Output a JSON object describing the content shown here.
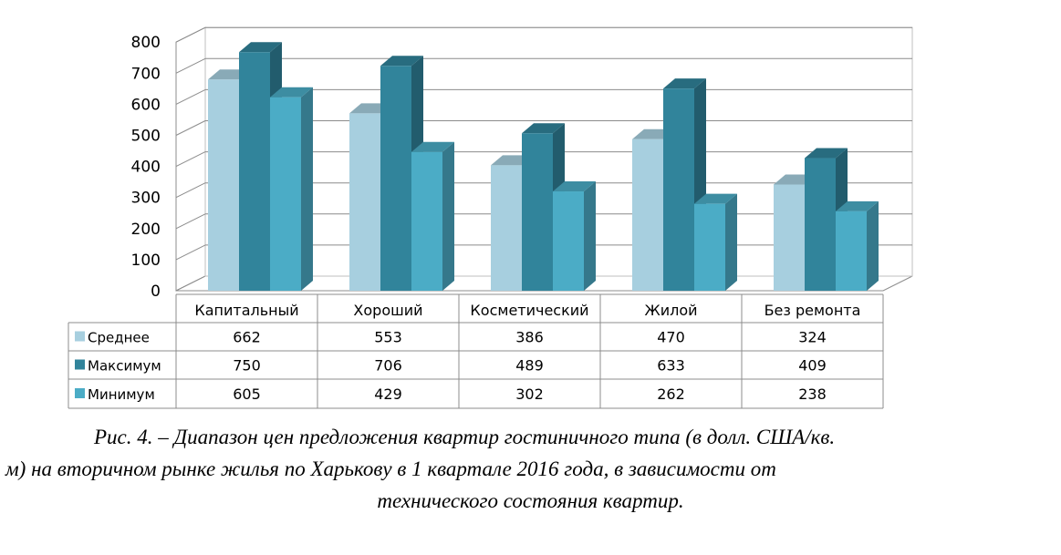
{
  "chart_data": {
    "type": "bar",
    "categories": [
      "Капитальный",
      "Хороший",
      "Косметический",
      "Жилой",
      "Без ремонта"
    ],
    "series": [
      {
        "name": "Среднее",
        "values": [
          662,
          553,
          386,
          470,
          324
        ],
        "color": "#a7cfdf"
      },
      {
        "name": "Максимум",
        "values": [
          750,
          706,
          489,
          633,
          409
        ],
        "color": "#31849b"
      },
      {
        "name": "Минимум",
        "values": [
          605,
          429,
          302,
          262,
          238
        ],
        "color": "#4bacc6"
      }
    ],
    "yticks": [
      "0",
      "100",
      "200",
      "300",
      "400",
      "500",
      "600",
      "700",
      "800"
    ],
    "ylim": [
      0,
      800
    ],
    "grid": true,
    "data_table": true
  },
  "caption": {
    "line1": "Рис. 4. – Диапазон цен предложения квартир гостиничного типа (в долл. США/кв.",
    "line2": "м) на вторичном рынке жилья по Харькову в 1 квартале 2016 года, в зависимости от",
    "line3": "технического состояния квартир."
  }
}
